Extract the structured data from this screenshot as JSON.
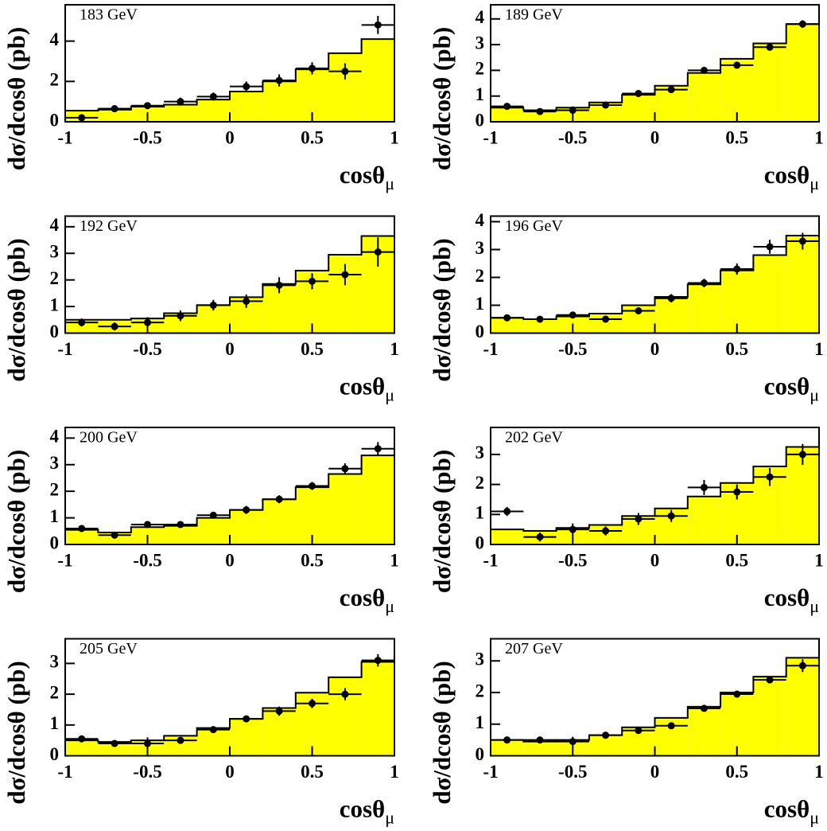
{
  "chart_data": [
    {
      "type": "histogram",
      "title": "183 GeV",
      "xlabel": {
        "text": "cosθ",
        "sub": "μ"
      },
      "ylabel": "dσ/dcosθ (pb)",
      "color": "#ffff00",
      "bins": [
        -1,
        -0.8,
        -0.6,
        -0.4,
        -0.2,
        0,
        0.2,
        0.4,
        0.6,
        0.8,
        1
      ],
      "counts": [
        0.55,
        0.6,
        0.75,
        0.85,
        1.1,
        1.5,
        2.0,
        2.6,
        3.4,
        4.1
      ],
      "points": {
        "x": [
          -0.9,
          -0.7,
          -0.5,
          -0.3,
          -0.1,
          0.1,
          0.3,
          0.5,
          0.7,
          0.9
        ],
        "values": [
          0.2,
          0.65,
          0.8,
          1.0,
          1.25,
          1.75,
          2.05,
          2.65,
          2.5,
          4.8
        ],
        "errors": [
          0.15,
          0.15,
          0.15,
          0.2,
          0.2,
          0.25,
          0.3,
          0.3,
          0.4,
          0.45
        ]
      },
      "xlim": [
        -1,
        1
      ],
      "ylim": [
        0,
        5.8
      ],
      "xticks": [
        -1,
        -0.5,
        0,
        0.5,
        1
      ],
      "yticks": [
        0,
        2,
        4
      ]
    },
    {
      "type": "histogram",
      "title": "189 GeV",
      "xlabel": {
        "text": "cosθ",
        "sub": "μ"
      },
      "ylabel": "dσ/dcosθ (pb)",
      "color": "#ffff00",
      "bins": [
        -1,
        -0.8,
        -0.6,
        -0.4,
        -0.2,
        0,
        0.2,
        0.4,
        0.6,
        0.8,
        1
      ],
      "counts": [
        0.55,
        0.45,
        0.55,
        0.75,
        1.05,
        1.4,
        1.9,
        2.45,
        3.05,
        3.8
      ],
      "points": {
        "x": [
          -0.9,
          -0.7,
          -0.5,
          -0.3,
          -0.1,
          0.1,
          0.3,
          0.5,
          0.7,
          0.9
        ],
        "values": [
          0.6,
          0.4,
          0.45,
          0.65,
          1.1,
          1.25,
          2.0,
          2.2,
          2.9,
          3.8
        ],
        "errors": [
          0.08,
          0.08,
          0.15,
          0.1,
          0.1,
          0.1,
          0.1,
          0.12,
          0.12,
          0.15
        ]
      },
      "xlim": [
        -1,
        1
      ],
      "ylim": [
        0,
        4.55
      ],
      "xticks": [
        -1,
        -0.5,
        0,
        0.5,
        1
      ],
      "yticks": [
        0,
        1,
        2,
        3,
        4
      ]
    },
    {
      "type": "histogram",
      "title": "192 GeV",
      "xlabel": {
        "text": "cosθ",
        "sub": "μ"
      },
      "ylabel": "dσ/dcosθ (pb)",
      "color": "#ffff00",
      "bins": [
        -1,
        -0.8,
        -0.6,
        -0.4,
        -0.2,
        0,
        0.2,
        0.4,
        0.6,
        0.8,
        1
      ],
      "counts": [
        0.5,
        0.5,
        0.55,
        0.75,
        1.05,
        1.35,
        1.85,
        2.35,
        2.95,
        3.65
      ],
      "points": {
        "x": [
          -0.9,
          -0.7,
          -0.5,
          -0.3,
          -0.1,
          0.1,
          0.3,
          0.5,
          0.7,
          0.9
        ],
        "values": [
          0.4,
          0.25,
          0.4,
          0.65,
          1.05,
          1.2,
          1.8,
          1.95,
          2.2,
          3.05
        ],
        "errors": [
          0.15,
          0.15,
          0.2,
          0.2,
          0.2,
          0.25,
          0.3,
          0.3,
          0.4,
          0.55
        ]
      },
      "xlim": [
        -1,
        1
      ],
      "ylim": [
        0,
        4.4
      ],
      "xticks": [
        -1,
        -0.5,
        0,
        0.5,
        1
      ],
      "yticks": [
        0,
        1,
        2,
        3,
        4
      ]
    },
    {
      "type": "histogram",
      "title": "196 GeV",
      "xlabel": {
        "text": "cosθ",
        "sub": "μ"
      },
      "ylabel": "dσ/dcosθ (pb)",
      "color": "#ffff00",
      "bins": [
        -1,
        -0.8,
        -0.6,
        -0.4,
        -0.2,
        0,
        0.2,
        0.4,
        0.6,
        0.8,
        1
      ],
      "counts": [
        0.55,
        0.5,
        0.6,
        0.7,
        1.0,
        1.3,
        1.75,
        2.25,
        2.8,
        3.5
      ],
      "points": {
        "x": [
          -0.9,
          -0.7,
          -0.5,
          -0.3,
          -0.1,
          0.1,
          0.3,
          0.5,
          0.7,
          0.9
        ],
        "values": [
          0.55,
          0.5,
          0.65,
          0.5,
          0.8,
          1.25,
          1.8,
          2.3,
          3.1,
          3.3
        ],
        "errors": [
          0.1,
          0.08,
          0.1,
          0.1,
          0.1,
          0.15,
          0.15,
          0.2,
          0.25,
          0.3
        ]
      },
      "xlim": [
        -1,
        1
      ],
      "ylim": [
        0,
        4.2
      ],
      "xticks": [
        -1,
        -0.5,
        0,
        0.5,
        1
      ],
      "yticks": [
        0,
        1,
        2,
        3,
        4
      ]
    },
    {
      "type": "histogram",
      "title": "200 GeV",
      "xlabel": {
        "text": "cosθ",
        "sub": "μ"
      },
      "ylabel": "dσ/dcosθ (pb)",
      "color": "#ffff00",
      "bins": [
        -1,
        -0.8,
        -0.6,
        -0.4,
        -0.2,
        0,
        0.2,
        0.4,
        0.6,
        0.8,
        1
      ],
      "counts": [
        0.55,
        0.45,
        0.65,
        0.7,
        1.0,
        1.3,
        1.7,
        2.15,
        2.65,
        3.35
      ],
      "points": {
        "x": [
          -0.9,
          -0.7,
          -0.5,
          -0.3,
          -0.1,
          0.1,
          0.3,
          0.5,
          0.7,
          0.9
        ],
        "values": [
          0.6,
          0.35,
          0.75,
          0.75,
          1.1,
          1.3,
          1.7,
          2.2,
          2.85,
          3.6
        ],
        "errors": [
          0.1,
          0.1,
          0.1,
          0.1,
          0.1,
          0.15,
          0.15,
          0.15,
          0.2,
          0.25
        ]
      },
      "xlim": [
        -1,
        1
      ],
      "ylim": [
        0,
        4.4
      ],
      "xticks": [
        -1,
        -0.5,
        0,
        0.5,
        1
      ],
      "yticks": [
        0,
        1,
        2,
        3,
        4
      ]
    },
    {
      "type": "histogram",
      "title": "202 GeV",
      "xlabel": {
        "text": "cosθ",
        "sub": "μ"
      },
      "ylabel": "dσ/dcosθ (pb)",
      "color": "#ffff00",
      "bins": [
        -1,
        -0.8,
        -0.6,
        -0.4,
        -0.2,
        0,
        0.2,
        0.4,
        0.6,
        0.8,
        1
      ],
      "counts": [
        0.5,
        0.45,
        0.55,
        0.65,
        0.95,
        1.2,
        1.6,
        2.05,
        2.6,
        3.25
      ],
      "points": {
        "x": [
          -0.9,
          -0.7,
          -0.5,
          -0.3,
          -0.1,
          0.1,
          0.3,
          0.5,
          0.7,
          0.9
        ],
        "values": [
          1.1,
          0.25,
          0.5,
          0.45,
          0.85,
          0.95,
          1.9,
          1.75,
          2.25,
          3.0
        ],
        "errors": [
          0.15,
          0.15,
          0.2,
          0.15,
          0.2,
          0.2,
          0.25,
          0.25,
          0.3,
          0.35
        ]
      },
      "xlim": [
        -1,
        1
      ],
      "ylim": [
        0,
        3.9
      ],
      "xticks": [
        -1,
        -0.5,
        0,
        0.5,
        1
      ],
      "yticks": [
        0,
        1,
        2,
        3
      ]
    },
    {
      "type": "histogram",
      "title": "205 GeV",
      "xlabel": {
        "text": "cosθ",
        "sub": "μ"
      },
      "ylabel": "dσ/dcosθ (pb)",
      "color": "#ffff00",
      "bins": [
        -1,
        -0.8,
        -0.6,
        -0.4,
        -0.2,
        0,
        0.2,
        0.4,
        0.6,
        0.8,
        1
      ],
      "counts": [
        0.5,
        0.45,
        0.5,
        0.65,
        0.9,
        1.2,
        1.55,
        2.05,
        2.55,
        3.05
      ],
      "points": {
        "x": [
          -0.9,
          -0.7,
          -0.5,
          -0.3,
          -0.1,
          0.1,
          0.3,
          0.5,
          0.7,
          0.9
        ],
        "values": [
          0.55,
          0.4,
          0.4,
          0.5,
          0.85,
          1.2,
          1.45,
          1.7,
          2.0,
          3.1
        ],
        "errors": [
          0.08,
          0.08,
          0.2,
          0.1,
          0.1,
          0.1,
          0.15,
          0.15,
          0.2,
          0.2
        ]
      },
      "xlim": [
        -1,
        1
      ],
      "ylim": [
        0,
        3.8
      ],
      "xticks": [
        -1,
        -0.5,
        0,
        0.5,
        1
      ],
      "yticks": [
        0,
        1,
        2,
        3
      ]
    },
    {
      "type": "histogram",
      "title": "207 GeV",
      "xlabel": {
        "text": "cosθ",
        "sub": "μ"
      },
      "ylabel": "dσ/dcosθ (pb)",
      "color": "#ffff00",
      "bins": [
        -1,
        -0.8,
        -0.6,
        -0.4,
        -0.2,
        0,
        0.2,
        0.4,
        0.6,
        0.8,
        1
      ],
      "counts": [
        0.5,
        0.45,
        0.5,
        0.65,
        0.9,
        1.2,
        1.55,
        2.0,
        2.5,
        3.1
      ],
      "points": {
        "x": [
          -0.9,
          -0.7,
          -0.5,
          -0.3,
          -0.1,
          0.1,
          0.3,
          0.5,
          0.7,
          0.9
        ],
        "values": [
          0.5,
          0.5,
          0.45,
          0.65,
          0.8,
          0.95,
          1.5,
          1.95,
          2.4,
          2.85
        ],
        "errors": [
          0.05,
          0.05,
          0.15,
          0.05,
          0.05,
          0.05,
          0.08,
          0.1,
          0.1,
          0.2
        ]
      },
      "xlim": [
        -1,
        1
      ],
      "ylim": [
        0,
        3.7
      ],
      "xticks": [
        -1,
        -0.5,
        0,
        0.5,
        1
      ],
      "yticks": [
        0,
        1,
        2,
        3
      ]
    }
  ]
}
